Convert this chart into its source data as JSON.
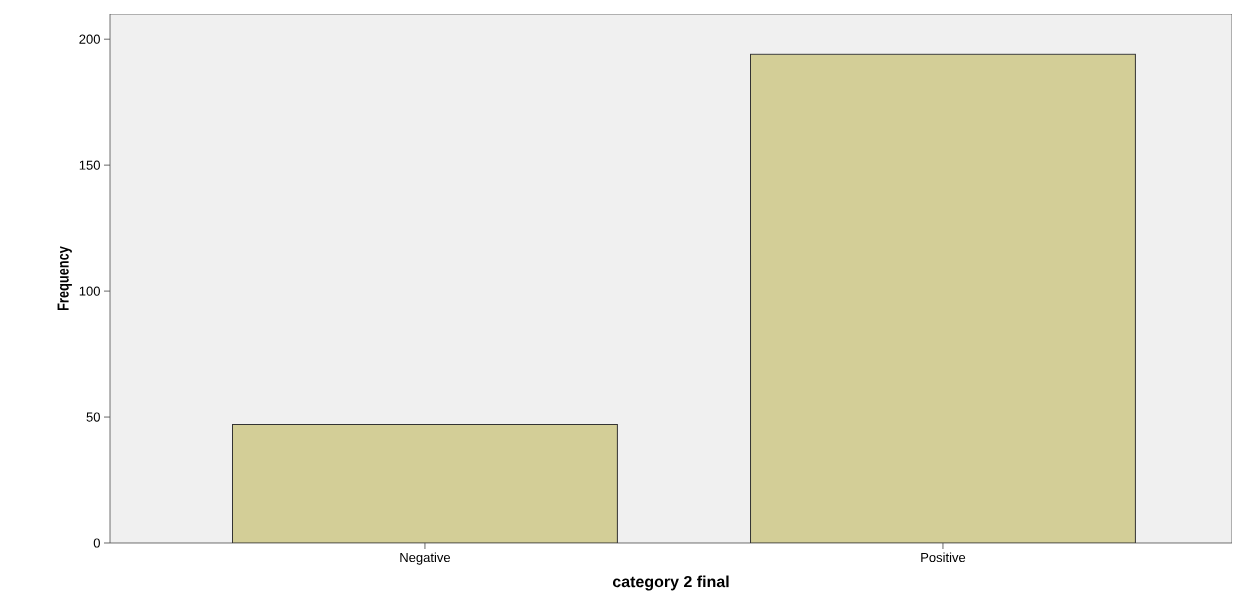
{
  "chart_data": {
    "type": "bar",
    "xlabel": "category 2 final",
    "ylabel": "Frequency",
    "categories": [
      "Negative",
      "Positive"
    ],
    "values": [
      47,
      194
    ],
    "color": "#d3ce97",
    "ylim": [
      0,
      210
    ],
    "yticks": [
      0,
      50,
      100,
      150,
      200
    ],
    "grid": false
  }
}
